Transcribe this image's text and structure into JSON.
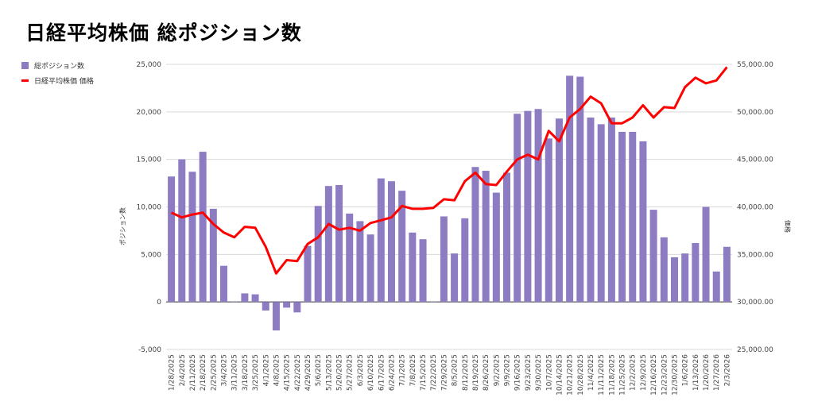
{
  "chart_data": {
    "type": "bar+line",
    "title": "日経平均株価 総ポジション数",
    "categories": [
      "1/28/2025",
      "2/4/2025",
      "2/11/2025",
      "2/18/2025",
      "2/25/2025",
      "3/4/2025",
      "3/11/2025",
      "3/18/2025",
      "3/25/2025",
      "4/1/2025",
      "4/8/2025",
      "4/15/2025",
      "4/22/2025",
      "4/29/2025",
      "5/6/2025",
      "5/13/2025",
      "5/20/2025",
      "5/27/2025",
      "6/3/2025",
      "6/10/2025",
      "6/17/2025",
      "6/24/2025",
      "7/1/2025",
      "7/8/2025",
      "7/15/2025",
      "7/22/2025",
      "7/29/2025",
      "8/5/2025",
      "8/12/2025",
      "8/19/2025",
      "8/26/2025",
      "9/2/2025",
      "9/9/2025",
      "9/16/2025",
      "9/23/2025",
      "9/30/2025",
      "10/7/2025",
      "10/14/2025",
      "10/21/2025",
      "10/28/2025",
      "11/4/2025",
      "11/11/2025",
      "11/18/2025",
      "11/25/2025",
      "12/2/2025",
      "12/9/2025",
      "12/16/2025",
      "12/23/2025",
      "12/30/2025",
      "1/6/2026",
      "1/13/2026",
      "1/20/2026",
      "1/27/2026",
      "2/3/2026"
    ],
    "series": [
      {
        "name": "総ポジション数",
        "type": "bar",
        "axis": "left",
        "color": "#8e7cc3",
        "values": [
          13200,
          15000,
          13700,
          15800,
          9800,
          3800,
          0,
          900,
          800,
          -900,
          -3000,
          -600,
          -1100,
          5900,
          10100,
          12200,
          12300,
          9300,
          8500,
          7100,
          13000,
          12700,
          11700,
          7300,
          6600,
          0,
          9000,
          5100,
          8800,
          14200,
          13800,
          11500,
          13600,
          19800,
          20100,
          20300,
          17200,
          19300,
          23800,
          23700,
          19400,
          18700,
          19400,
          17900,
          17900,
          16900,
          9700,
          6800,
          4700,
          5100,
          6200,
          10000,
          3200,
          5800
        ]
      },
      {
        "name": "日経平均株価 価格",
        "type": "line",
        "axis": "right",
        "color": "#ff0000",
        "values": [
          39400,
          38900,
          39200,
          39400,
          38200,
          37300,
          36800,
          37900,
          37800,
          35800,
          33000,
          34400,
          34300,
          36100,
          36800,
          38200,
          37600,
          37800,
          37500,
          38300,
          38600,
          38900,
          40100,
          39800,
          39800,
          39900,
          40800,
          40700,
          42700,
          43600,
          42400,
          42300,
          43700,
          45000,
          45500,
          45000,
          48000,
          46900,
          49400,
          50300,
          51600,
          50900,
          48800,
          48800,
          49400,
          50700,
          49400,
          50500,
          50400,
          52600,
          53600,
          53000,
          53300,
          54700
        ]
      }
    ],
    "ylabel_left": "ポジション数",
    "ylabel_right": "価格",
    "ylim_left": [
      -5000,
      25000
    ],
    "ylim_right": [
      25000,
      55000
    ],
    "yticks_left": [
      "-5,000",
      "0",
      "5,000",
      "10,000",
      "15,000",
      "20,000",
      "25,000"
    ],
    "yticks_right": [
      "25,000.00",
      "30,000.00",
      "35,000.00",
      "40,000.00",
      "45,000.00",
      "50,000.00",
      "55,000.00"
    ],
    "grid": true,
    "legend": [
      "総ポジション数",
      "日経平均株価 価格"
    ],
    "legend_position": "top-left"
  }
}
